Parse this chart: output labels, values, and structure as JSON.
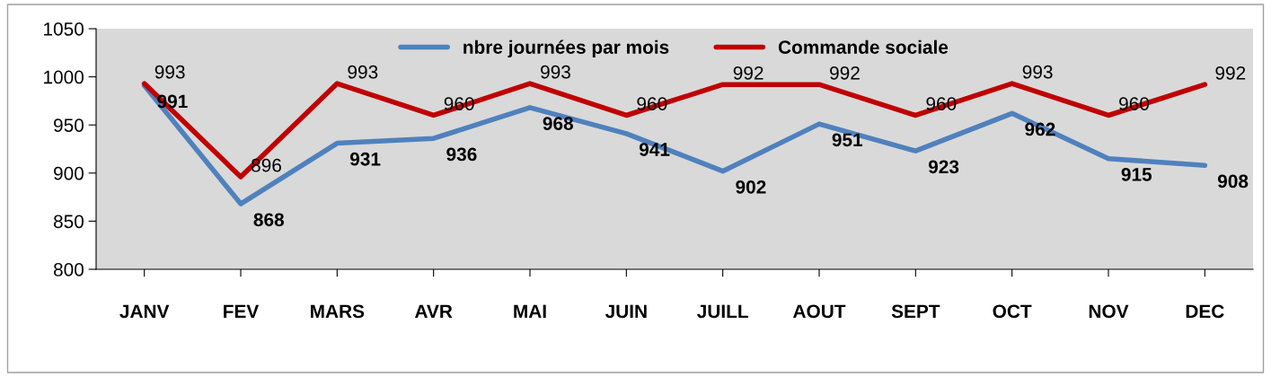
{
  "chart_data": {
    "type": "line",
    "categories": [
      "JANV",
      "FEV",
      "MARS",
      "AVR",
      "MAI",
      "JUIN",
      "JUILL",
      "AOUT",
      "SEPT",
      "OCT",
      "NOV",
      "DEC"
    ],
    "series": [
      {
        "name": "nbre journées par mois",
        "color": "#4f81bd",
        "values": [
          991,
          868,
          931,
          936,
          968,
          941,
          902,
          951,
          923,
          962,
          915,
          908
        ]
      },
      {
        "name": "Commande sociale",
        "color": "#c00000",
        "values": [
          993,
          896,
          993,
          960,
          993,
          960,
          992,
          992,
          960,
          993,
          960,
          992
        ]
      }
    ],
    "ylim": [
      800,
      1050
    ],
    "yticks": [
      800,
      850,
      900,
      950,
      1000,
      1050
    ],
    "grid": false,
    "legend": "top",
    "data_labels": true,
    "marker": "none",
    "line_style": "solid"
  }
}
